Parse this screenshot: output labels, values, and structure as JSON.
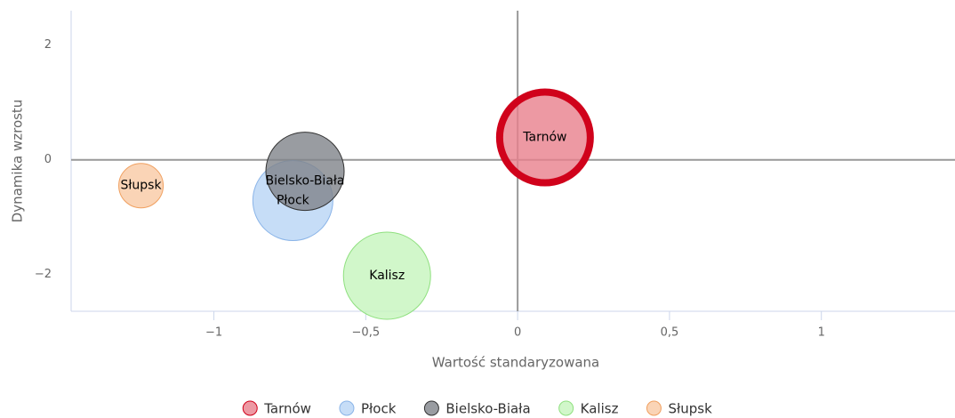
{
  "chart_data": {
    "type": "bubble",
    "x_label": "Wartość standaryzowana",
    "y_label": "Dynamika wzrostu",
    "xlim": [
      -1.47,
      1.44
    ],
    "ylim": [
      -2.64,
      2.6
    ],
    "xticks": [
      {
        "value": -1,
        "label": "−1"
      },
      {
        "value": -0.5,
        "label": "−0,5"
      },
      0,
      {
        "value": 0.5,
        "label": "0,5"
      },
      1
    ],
    "yticks": [
      2,
      0,
      {
        "value": -2,
        "label": "−2"
      }
    ],
    "series": [
      {
        "name": "Tarnów",
        "color": "#e8808c",
        "border_color": "#d0021b",
        "selected": true,
        "x": [
          0.09
        ],
        "values": [
          0.39
        ],
        "sizes": [
          55
        ]
      },
      {
        "name": "Płock",
        "color": "#b8d4f5",
        "border_color": "#8ab4e8",
        "x": [
          -0.74
        ],
        "values": [
          -0.71
        ],
        "sizes": [
          45
        ]
      },
      {
        "name": "Bielsko-Biała",
        "color": "#7f8389",
        "border_color": "#333333",
        "x": [
          -0.7
        ],
        "values": [
          -0.2
        ],
        "sizes": [
          44
        ]
      },
      {
        "name": "Kalisz",
        "color": "#c5f5bd",
        "border_color": "#8fe07f",
        "x": [
          -0.43
        ],
        "values": [
          -2.02
        ],
        "sizes": [
          49
        ]
      },
      {
        "name": "Słupsk",
        "color": "#f9c9a4",
        "border_color": "#f0a060",
        "x": [
          -1.24
        ],
        "values": [
          -0.45
        ],
        "sizes": [
          25
        ]
      }
    ]
  }
}
